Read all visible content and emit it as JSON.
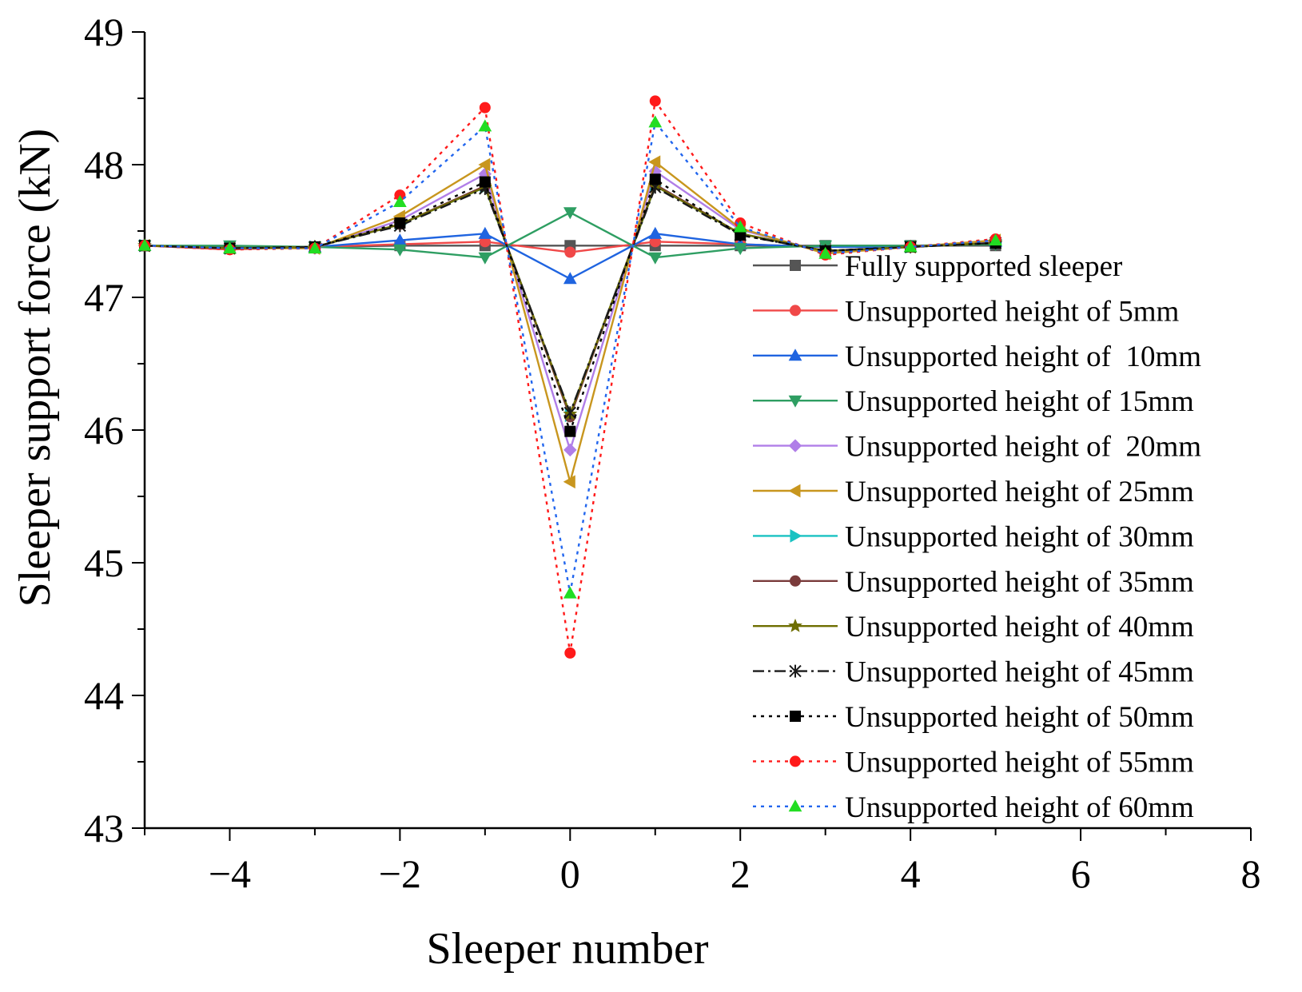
{
  "chart_data": {
    "type": "line",
    "xlabel": "Sleeper number",
    "ylabel": "Sleeper support force (kN)",
    "xlim": [
      -5,
      8
    ],
    "ylim": [
      43,
      49
    ],
    "xticks": [
      -4,
      -2,
      0,
      2,
      4,
      6,
      8
    ],
    "xtick_labels": [
      "−4",
      "−2",
      "0",
      "2",
      "4",
      "6",
      "8"
    ],
    "yticks": [
      43,
      44,
      45,
      46,
      47,
      48,
      49
    ],
    "ytick_labels": [
      "43",
      "44",
      "45",
      "46",
      "47",
      "48",
      "49"
    ],
    "legend_position": "right",
    "x": [
      -5,
      -4,
      -3,
      -2,
      -1,
      0,
      1,
      2,
      3,
      4,
      5
    ],
    "series": [
      {
        "name": "Fully supported sleeper",
        "color": "#555555",
        "dash": "solid",
        "marker": "square",
        "values": [
          47.39,
          47.38,
          47.38,
          47.39,
          47.39,
          47.39,
          47.39,
          47.39,
          47.39,
          47.39,
          47.39
        ]
      },
      {
        "name": "Unsupported height of 5mm",
        "color": "#f04848",
        "dash": "solid",
        "marker": "circle",
        "values": [
          47.39,
          47.36,
          47.38,
          47.4,
          47.42,
          47.34,
          47.42,
          47.4,
          47.38,
          47.38,
          47.42
        ]
      },
      {
        "name": "Unsupported height of  10mm",
        "color": "#1f64e0",
        "dash": "solid",
        "marker": "triangle-up",
        "values": [
          47.39,
          47.37,
          47.38,
          47.43,
          47.48,
          47.14,
          47.48,
          47.4,
          47.38,
          47.38,
          47.42
        ]
      },
      {
        "name": "Unsupported height of 15mm",
        "color": "#2e9e62",
        "dash": "solid",
        "marker": "triangle-down",
        "values": [
          47.39,
          47.39,
          47.38,
          47.36,
          47.3,
          47.64,
          47.3,
          47.37,
          47.39,
          47.39,
          47.4
        ]
      },
      {
        "name": "Unsupported height of  20mm",
        "color": "#b07ee8",
        "dash": "solid",
        "marker": "diamond",
        "values": [
          47.39,
          47.37,
          47.37,
          47.58,
          47.93,
          45.85,
          47.95,
          47.51,
          47.34,
          47.38,
          47.42
        ]
      },
      {
        "name": "Unsupported height of 25mm",
        "color": "#c8961e",
        "dash": "solid",
        "marker": "triangle-left",
        "values": [
          47.39,
          47.37,
          47.37,
          47.61,
          48.0,
          45.61,
          48.02,
          47.52,
          47.33,
          47.38,
          47.43
        ]
      },
      {
        "name": "Unsupported height of 30mm",
        "color": "#19c2c2",
        "dash": "solid",
        "marker": "triangle-right",
        "values": [
          47.39,
          47.37,
          47.38,
          47.55,
          47.83,
          46.11,
          47.84,
          47.48,
          47.35,
          47.38,
          47.41
        ]
      },
      {
        "name": "Unsupported height of 35mm",
        "color": "#7a3b3b",
        "dash": "solid",
        "marker": "circle",
        "values": [
          47.39,
          47.37,
          47.38,
          47.55,
          47.84,
          46.1,
          47.85,
          47.48,
          47.35,
          47.38,
          47.41
        ]
      },
      {
        "name": "Unsupported height of 40mm",
        "color": "#6e6e00",
        "dash": "solid",
        "marker": "star",
        "values": [
          47.39,
          47.37,
          47.38,
          47.55,
          47.83,
          46.12,
          47.84,
          47.48,
          47.35,
          47.38,
          47.41
        ]
      },
      {
        "name": "Unsupported height of 45mm",
        "color": "#1a1a1a",
        "dash": "dashdot",
        "marker": "x-star",
        "values": [
          47.39,
          47.37,
          47.38,
          47.54,
          47.82,
          46.13,
          47.83,
          47.47,
          47.35,
          47.38,
          47.41
        ]
      },
      {
        "name": "Unsupported height of 50mm",
        "color": "#000000",
        "dash": "dotted",
        "marker": "square",
        "values": [
          47.39,
          47.37,
          47.38,
          47.56,
          47.87,
          45.99,
          47.89,
          47.47,
          47.35,
          47.38,
          47.41
        ]
      },
      {
        "name": "Unsupported height of 55mm",
        "color": "#ff1a1a",
        "dash": "dotted",
        "marker": "circle",
        "values": [
          47.39,
          47.36,
          47.37,
          47.77,
          48.43,
          44.32,
          48.48,
          47.56,
          47.32,
          47.38,
          47.44
        ]
      },
      {
        "name": "Unsupported height of 60mm",
        "color": "#2266ee",
        "dash": "dotted",
        "marker": "triangle-up",
        "marker_color": "#22dd22",
        "values": [
          47.39,
          47.37,
          47.37,
          47.72,
          48.29,
          44.77,
          48.32,
          47.53,
          47.33,
          47.38,
          47.43
        ]
      }
    ]
  }
}
